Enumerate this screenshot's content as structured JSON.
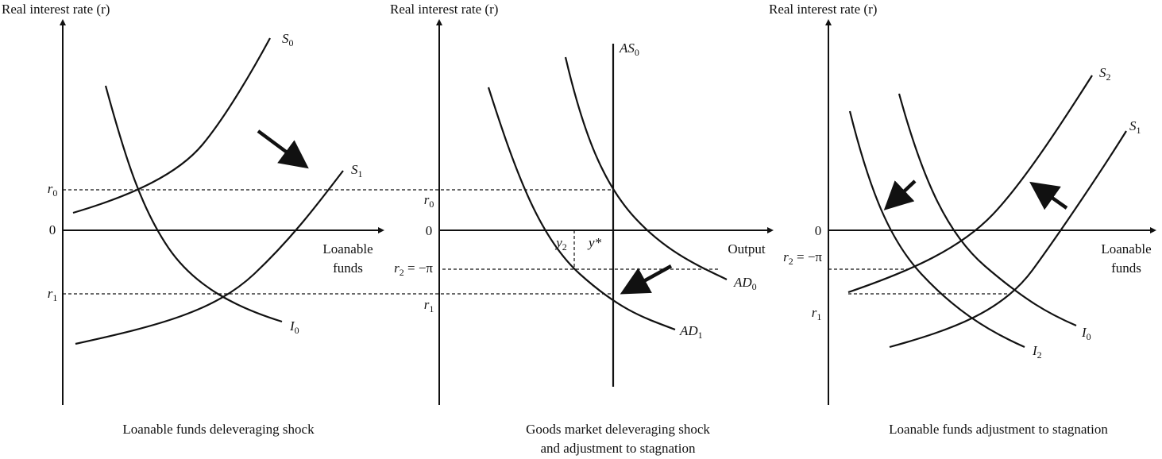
{
  "panels": [
    {
      "y_axis_title": "Real interest rate (r)",
      "x_axis_title": [
        "Loanable",
        "funds"
      ],
      "caption": [
        "Loanable funds deleveraging shock"
      ],
      "y_ticks": [
        {
          "main": "r",
          "sub": "0"
        },
        {
          "main": "0"
        },
        {
          "main": "r",
          "sub": "1"
        }
      ],
      "curves": [
        {
          "main": "S",
          "sub": "0"
        },
        {
          "main": "S",
          "sub": "1"
        },
        {
          "main": "I",
          "sub": "0"
        }
      ]
    },
    {
      "y_axis_title": "Real interest rate (r)",
      "x_axis_title": [
        "Output"
      ],
      "caption": [
        "Goods market deleveraging shock",
        "and adjustment to stagnation"
      ],
      "y_ticks": [
        {
          "main": "r",
          "sub": "0"
        },
        {
          "main": "0"
        },
        {
          "main": "r",
          "sub": "2",
          "rest": " = −π"
        },
        {
          "main": "r",
          "sub": "1"
        }
      ],
      "curves": [
        {
          "main": "AS",
          "sub": "0"
        },
        {
          "main": "AD",
          "sub": "0"
        },
        {
          "main": "AD",
          "sub": "1"
        }
      ],
      "output_labels": [
        {
          "main": "y",
          "sub": "2"
        },
        {
          "main": "y*"
        }
      ]
    },
    {
      "y_axis_title": "Real interest rate (r)",
      "x_axis_title": [
        "Loanable",
        "funds"
      ],
      "caption": [
        "Loanable funds adjustment to stagnation"
      ],
      "y_ticks": [
        {
          "main": "0"
        },
        {
          "main": "r",
          "sub": "2",
          "rest": " = −π"
        },
        {
          "main": "r",
          "sub": "1"
        }
      ],
      "curves": [
        {
          "main": "S",
          "sub": "2"
        },
        {
          "main": "S",
          "sub": "1"
        },
        {
          "main": "I",
          "sub": "0"
        },
        {
          "main": "I",
          "sub": "2"
        }
      ]
    }
  ]
}
